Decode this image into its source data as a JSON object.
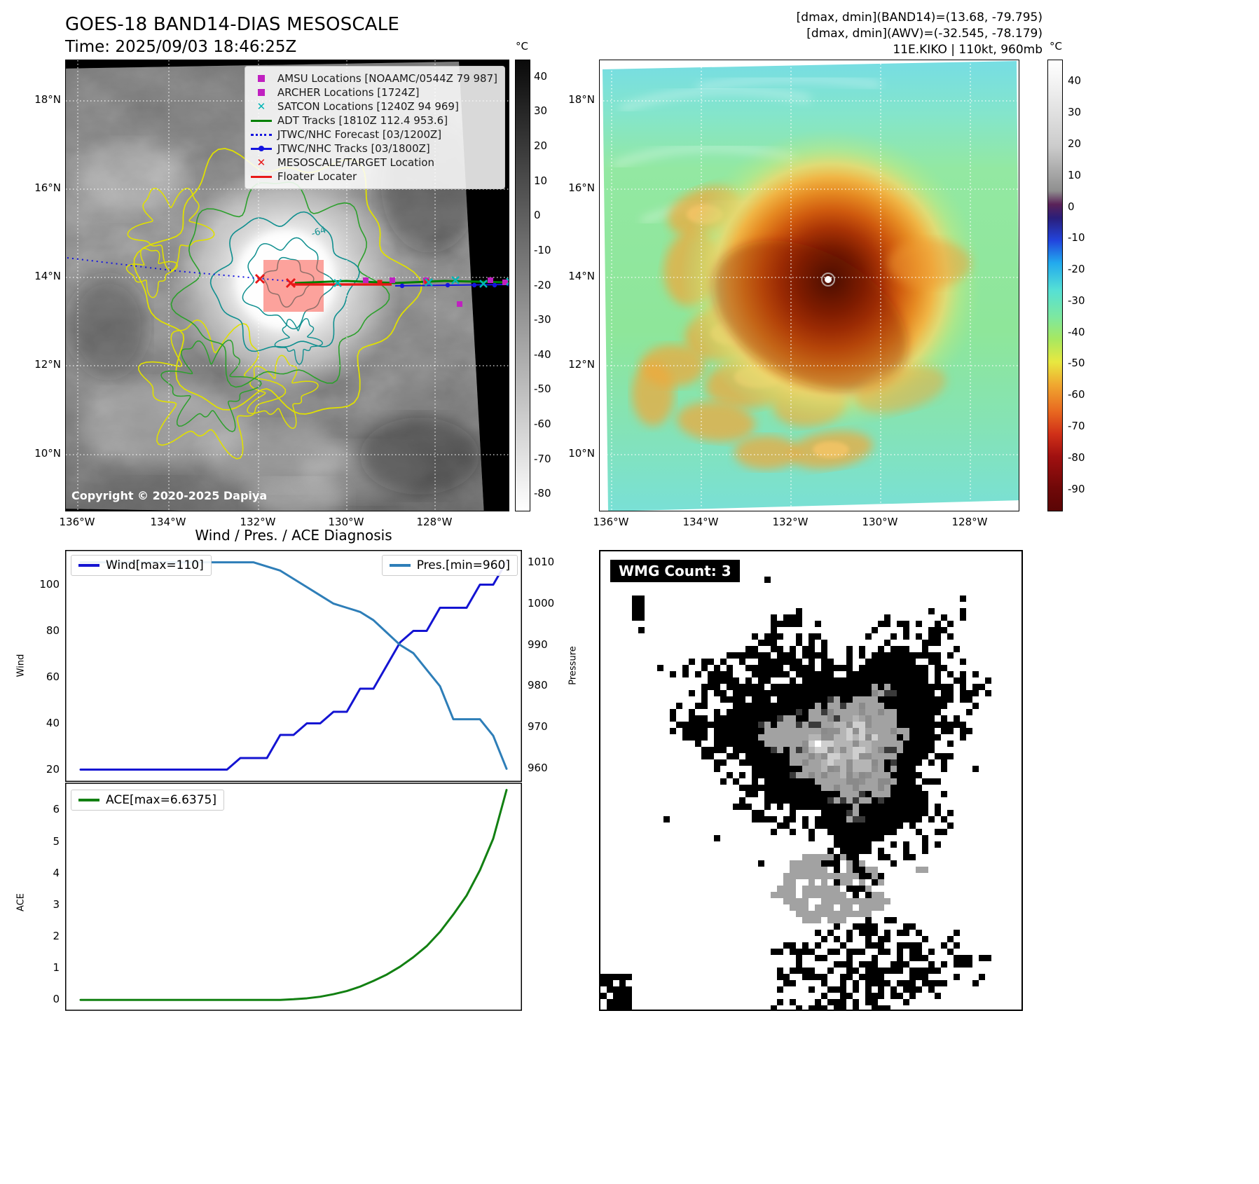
{
  "header_left": {
    "title": "GOES-18 BAND14-DIAS MESOSCALE",
    "time": "Time: 2025/09/03 18:46:25Z"
  },
  "header_right": {
    "line1": "[dmax, dmin](BAND14)=(13.68, -79.795)",
    "line2": "[dmax, dmin](AWV)=(-32.545, -78.179)",
    "line3": "11E.KIKO | 110kt, 960mb"
  },
  "left_map": {
    "legend_items": [
      {
        "label": "AMSU Locations [NOAAMC/0544Z 79 987]",
        "marker": "square",
        "color": "#c020c0"
      },
      {
        "label": "ARCHER Locations [1724Z]",
        "marker": "square",
        "color": "#c020c0"
      },
      {
        "label": "SATCON Locations [1240Z 94 969]",
        "marker": "x",
        "color": "#00b5b5"
      },
      {
        "label": "ADT Tracks [1810Z 112.4 953.6]",
        "marker": "line",
        "color": "#008000"
      },
      {
        "label": "JTWC/NHC Forecast [03/1200Z]",
        "marker": "dotted",
        "color": "#1515e0"
      },
      {
        "label": "JTWC/NHC Tracks [03/1800Z]",
        "marker": "line-dot",
        "color": "#1515e0"
      },
      {
        "label": "MESOSCALE/TARGET Location",
        "marker": "x",
        "color": "#e81818"
      },
      {
        "label": "Floater Locater",
        "marker": "line",
        "color": "#e81818"
      }
    ],
    "contour_label": "-64",
    "copyright": "Copyright © 2020-2025 Dapiya",
    "lat_ticks": [
      "18°N",
      "16°N",
      "14°N",
      "12°N",
      "10°N"
    ],
    "lon_ticks": [
      "136°W",
      "134°W",
      "132°W",
      "130°W",
      "128°W"
    ],
    "colorbar": {
      "unit": "°C",
      "ticks": [
        40,
        30,
        20,
        10,
        0,
        -10,
        -20,
        -30,
        -40,
        -50,
        -60,
        -70,
        -80
      ],
      "gradient": [
        "#0a0a0a",
        "#ffffff"
      ]
    }
  },
  "right_map": {
    "lat_ticks": [
      "18°N",
      "16°N",
      "14°N",
      "12°N",
      "10°N"
    ],
    "lon_ticks": [
      "136°W",
      "134°W",
      "132°W",
      "130°W",
      "128°W"
    ],
    "colorbar": {
      "unit": "°C",
      "ticks": [
        40,
        30,
        20,
        10,
        0,
        -10,
        -20,
        -30,
        -40,
        -50,
        -60,
        -70,
        -80,
        -90
      ],
      "gradient": [
        [
          0,
          "#ffffff"
        ],
        [
          6,
          "#f0f0f0"
        ],
        [
          19,
          "#cccccc"
        ],
        [
          29,
          "#8f8f8f"
        ],
        [
          32,
          "#5a2258"
        ],
        [
          35,
          "#2a1e7a"
        ],
        [
          40,
          "#2244dd"
        ],
        [
          45,
          "#22aaee"
        ],
        [
          51,
          "#55e0d5"
        ],
        [
          57,
          "#7de8a0"
        ],
        [
          62,
          "#a8e860"
        ],
        [
          67,
          "#e8e840"
        ],
        [
          72,
          "#f0a830"
        ],
        [
          78,
          "#e86820"
        ],
        [
          83,
          "#d03018"
        ],
        [
          88,
          "#a01010"
        ],
        [
          95,
          "#700808"
        ],
        [
          100,
          "#5a0505"
        ]
      ]
    }
  },
  "diagnosis": {
    "title": "Wind / Pres. / ACE Diagnosis",
    "wind_legend": "Wind[max=110]",
    "pres_legend": "Pres.[min=960]",
    "ace_legend": "ACE[max=6.6375]",
    "wind_ylabel": "Wind",
    "pressure_ylabel": "Pressure",
    "ace_ylabel": "ACE"
  },
  "wmg": {
    "label": "WMG Count: 3"
  },
  "chart_data": [
    {
      "type": "line",
      "title": "Wind / Pres. / ACE Diagnosis (wind & pressure panel)",
      "x": [
        0,
        1,
        2,
        3,
        4,
        5,
        6,
        7,
        8,
        9,
        10,
        11,
        12,
        13,
        14,
        15,
        16,
        17,
        18,
        19,
        20,
        21,
        22,
        23,
        24,
        25,
        26,
        27,
        28,
        29,
        30,
        31,
        32
      ],
      "series": [
        {
          "name": "Wind",
          "color": "#1414d2",
          "axis": "left",
          "values": [
            20,
            20,
            20,
            20,
            20,
            20,
            20,
            20,
            20,
            20,
            20,
            20,
            25,
            25,
            25,
            35,
            35,
            40,
            40,
            45,
            45,
            55,
            55,
            65,
            75,
            80,
            80,
            90,
            90,
            90,
            100,
            100,
            110
          ]
        },
        {
          "name": "Pres.",
          "color": "#2e7eb8",
          "axis": "right",
          "values": [
            1010,
            1010,
            1010,
            1010,
            1010,
            1010,
            1010,
            1010,
            1010,
            1010,
            1010,
            1010,
            1010,
            1010,
            1009,
            1008,
            1006,
            1004,
            1002,
            1000,
            999,
            998,
            996,
            993,
            990,
            988,
            984,
            980,
            972,
            972,
            972,
            968,
            960
          ]
        }
      ],
      "left_ylabel": "Wind",
      "left_ylim": [
        15,
        115
      ],
      "left_ticks": [
        100,
        80,
        60,
        40,
        20
      ],
      "right_ylabel": "Pressure",
      "right_ylim": [
        957,
        1013
      ],
      "right_ticks": [
        1010,
        1000,
        990,
        980,
        970,
        960
      ],
      "legend": [
        "Wind[max=110]",
        "Pres.[min=960]"
      ],
      "grid": false,
      "legend_position": "upper-left / upper-right"
    },
    {
      "type": "line",
      "title": "ACE panel",
      "x": [
        0,
        1,
        2,
        3,
        4,
        5,
        6,
        7,
        8,
        9,
        10,
        11,
        12,
        13,
        14,
        15,
        16,
        17,
        18,
        19,
        20,
        21,
        22,
        23,
        24,
        25,
        26,
        27,
        28,
        29,
        30,
        31,
        32
      ],
      "series": [
        {
          "name": "ACE",
          "color": "#128012",
          "values": [
            0,
            0,
            0,
            0,
            0,
            0,
            0,
            0,
            0,
            0,
            0,
            0,
            0,
            0,
            0,
            0,
            0.02,
            0.05,
            0.1,
            0.18,
            0.28,
            0.42,
            0.6,
            0.8,
            1.05,
            1.35,
            1.7,
            2.15,
            2.7,
            3.3,
            4.1,
            5.1,
            6.6375
          ]
        }
      ],
      "ylabel": "ACE",
      "ylim": [
        -0.35,
        6.85
      ],
      "yticks": [
        6,
        5,
        4,
        3,
        2,
        1,
        0
      ],
      "legend": [
        "ACE[max=6.6375]"
      ],
      "grid": false,
      "legend_position": "upper-left"
    }
  ]
}
